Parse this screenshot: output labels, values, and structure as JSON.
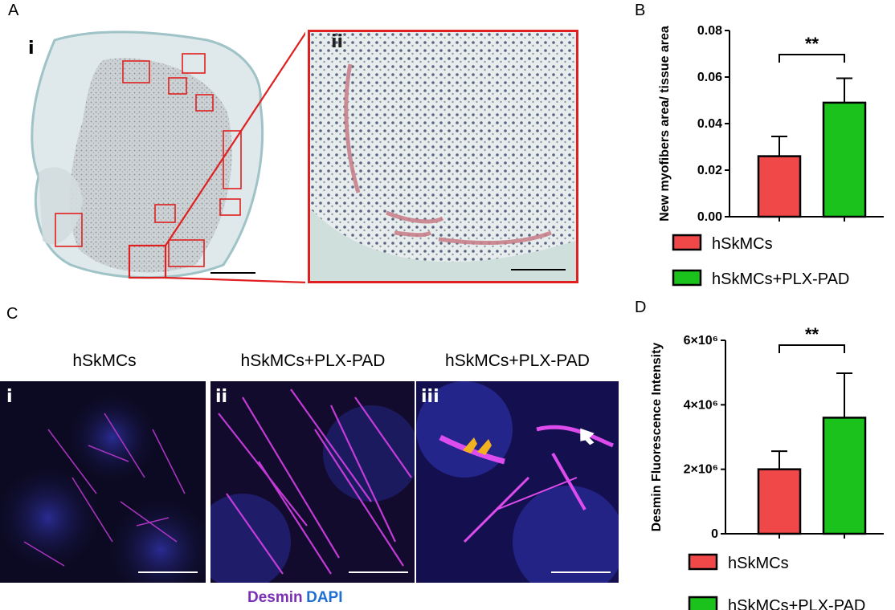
{
  "panels": {
    "a": {
      "letter": "A",
      "sub_i": "i",
      "sub_ii": "ii"
    },
    "b": {
      "letter": "B"
    },
    "c": {
      "letter": "C",
      "columns": [
        {
          "title": "hSkMCs",
          "sub": "i"
        },
        {
          "title": "hSkMCs+PLX-PAD",
          "sub": "ii"
        },
        {
          "title": "hSkMCs+PLX-PAD",
          "sub": "iii"
        }
      ],
      "stain_desmin": "Desmin",
      "stain_dapi": "DAPI",
      "stain_colors": {
        "desmin": "#7b2fb5",
        "dapi": "#1f6fd1"
      }
    },
    "d": {
      "letter": "D"
    }
  },
  "colors": {
    "bar_control": "#f04848",
    "bar_treated": "#1bc21b",
    "roi_red": "#e02020"
  },
  "chart_data": [
    {
      "type": "bar",
      "panel": "B",
      "title": "",
      "ylabel": "New myofibers area/ tissue area",
      "xlabel": "",
      "ylim": [
        0,
        0.08
      ],
      "yticks": [
        "0.00",
        "0.02",
        "0.04",
        "0.06",
        "0.08"
      ],
      "ytick_values": [
        0,
        0.02,
        0.04,
        0.06,
        0.08
      ],
      "categories": [
        "hSkMCs",
        "hSkMCs+PLX-PAD"
      ],
      "values": [
        0.026,
        0.049
      ],
      "errors": [
        0.0085,
        0.0105
      ],
      "significance": "**",
      "legend": [
        "hSkMCs",
        "hSkMCs+PLX-PAD"
      ],
      "legend_position": "bottom"
    },
    {
      "type": "bar",
      "panel": "D",
      "title": "",
      "ylabel": "Desmin Fluorescence Intensity",
      "xlabel": "",
      "ylim": [
        0,
        6000000
      ],
      "yticks": [
        "0",
        "2×10⁶",
        "4×10⁶",
        "6×10⁶"
      ],
      "ytick_values": [
        0,
        2000000,
        4000000,
        6000000
      ],
      "categories": [
        "hSkMCs",
        "hSkMCs+PLX-PAD"
      ],
      "values": [
        2000000,
        3600000
      ],
      "errors": [
        560000,
        1380000
      ],
      "significance": "**",
      "legend": [
        "hSkMCs",
        "hSkMCs+PLX-PAD"
      ],
      "legend_position": "bottom"
    }
  ]
}
